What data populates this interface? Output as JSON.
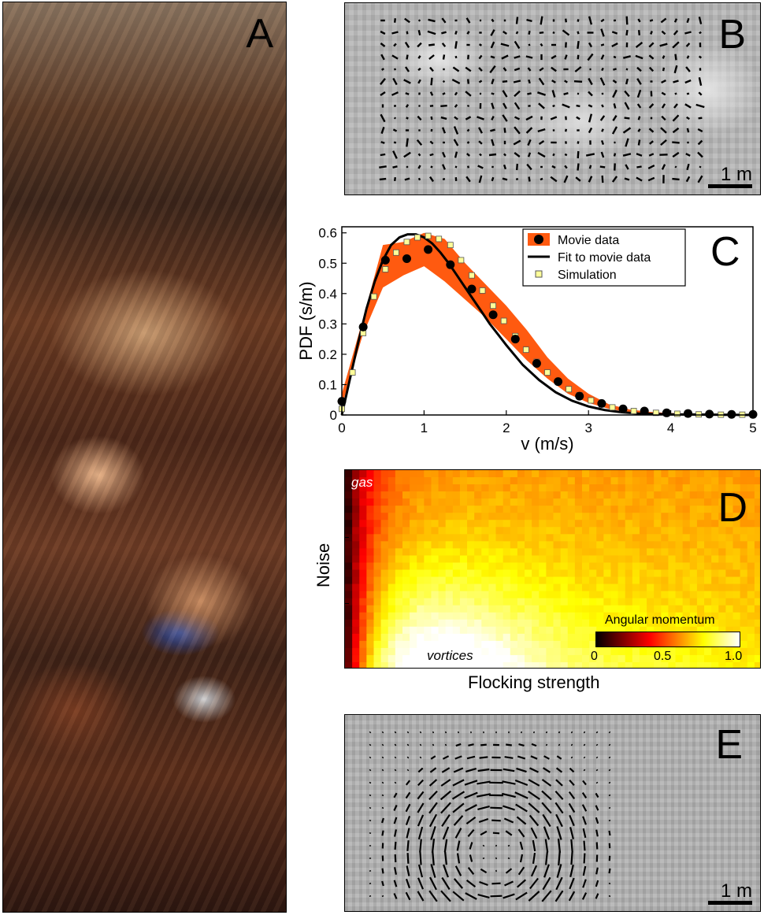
{
  "panels": {
    "a": {
      "letter": "A"
    },
    "b": {
      "letter": "B",
      "scale_label": "1 m"
    },
    "c": {
      "letter": "C"
    },
    "d": {
      "letter": "D",
      "ylabel": "Noise",
      "xlabel": "Flocking strength",
      "label_gas": "gas",
      "label_vortices": "vortices",
      "colorbar_title": "Angular momentum",
      "colorbar_ticks": [
        "0",
        "0.5",
        "1.0"
      ]
    },
    "e": {
      "letter": "E",
      "scale_label": "1 m"
    }
  },
  "colors": {
    "band": "#ff5a10",
    "movie_points": "#000000",
    "fit_line": "#000000",
    "sim_marker_fill": "#ffff99",
    "sim_marker_edge": "#555555"
  },
  "chart_data": [
    {
      "type": "line",
      "panel": "C",
      "xlabel": "v (m/s)",
      "ylabel": "PDF (s/m)",
      "xlim": [
        0,
        5
      ],
      "ylim": [
        0,
        0.62
      ],
      "xticks": [
        0,
        1,
        2,
        3,
        4,
        5
      ],
      "yticks": [
        0,
        0.1,
        0.2,
        0.3,
        0.4,
        0.5,
        0.6
      ],
      "ytick_labels": [
        "0",
        "0.1",
        "0.2",
        "0.3",
        "0.4",
        "0.5",
        "0.6"
      ],
      "legend_position": "top-right",
      "legend": [
        "Movie data",
        "Fit to movie data",
        "Simulation"
      ],
      "band": {
        "x": [
          0,
          0.25,
          0.5,
          0.75,
          1.0,
          1.25,
          1.5,
          1.75,
          2.0,
          2.25,
          2.5,
          2.75,
          3.0,
          3.25,
          3.5,
          3.75,
          4.0,
          4.5,
          5.0
        ],
        "upper": [
          0.07,
          0.31,
          0.56,
          0.57,
          0.6,
          0.58,
          0.5,
          0.43,
          0.36,
          0.28,
          0.19,
          0.12,
          0.07,
          0.035,
          0.018,
          0.01,
          0.006,
          0.003,
          0.002
        ],
        "lower": [
          0.03,
          0.26,
          0.42,
          0.46,
          0.49,
          0.44,
          0.38,
          0.32,
          0.25,
          0.18,
          0.12,
          0.07,
          0.04,
          0.02,
          0.009,
          0.005,
          0.003,
          0.001,
          0.001
        ]
      },
      "series": [
        {
          "name": "Movie data",
          "marker": "circle",
          "x": [
            0,
            0.26,
            0.53,
            0.79,
            1.05,
            1.32,
            1.58,
            1.84,
            2.11,
            2.37,
            2.63,
            2.89,
            3.16,
            3.42,
            3.68,
            3.95,
            4.21,
            4.47,
            4.74,
            5.0
          ],
          "y": [
            0.045,
            0.29,
            0.51,
            0.515,
            0.545,
            0.495,
            0.415,
            0.33,
            0.25,
            0.17,
            0.11,
            0.062,
            0.038,
            0.02,
            0.013,
            0.007,
            0.005,
            0.003,
            0.002,
            0.002
          ]
        },
        {
          "name": "Fit to movie data",
          "marker": "none",
          "x": [
            0,
            0.1,
            0.2,
            0.3,
            0.4,
            0.5,
            0.6,
            0.7,
            0.8,
            0.9,
            1.0,
            1.1,
            1.2,
            1.3,
            1.4,
            1.5,
            1.6,
            1.7,
            1.8,
            1.9,
            2.0,
            2.2,
            2.4,
            2.6,
            2.8,
            3.0,
            3.2,
            3.4,
            3.6,
            3.8,
            4.0,
            4.5,
            5.0
          ],
          "y": [
            0.0,
            0.12,
            0.24,
            0.35,
            0.44,
            0.51,
            0.56,
            0.585,
            0.595,
            0.595,
            0.585,
            0.565,
            0.535,
            0.5,
            0.46,
            0.42,
            0.38,
            0.34,
            0.3,
            0.265,
            0.23,
            0.165,
            0.115,
            0.075,
            0.047,
            0.028,
            0.016,
            0.009,
            0.005,
            0.003,
            0.002,
            0.001,
            0.0
          ]
        },
        {
          "name": "Simulation",
          "marker": "square",
          "x": [
            0.0,
            0.13,
            0.26,
            0.39,
            0.53,
            0.66,
            0.79,
            0.92,
            1.05,
            1.18,
            1.32,
            1.45,
            1.58,
            1.71,
            1.84,
            1.97,
            2.11,
            2.24,
            2.37,
            2.5,
            2.63,
            2.76,
            2.89,
            3.03,
            3.16,
            3.29,
            3.42,
            3.55,
            3.68,
            3.82,
            3.95,
            4.08,
            4.21,
            4.34,
            4.47,
            4.61,
            4.74,
            4.87,
            5.0
          ],
          "y": [
            0.02,
            0.14,
            0.27,
            0.39,
            0.48,
            0.535,
            0.57,
            0.585,
            0.59,
            0.58,
            0.56,
            0.51,
            0.46,
            0.41,
            0.36,
            0.31,
            0.26,
            0.215,
            0.175,
            0.14,
            0.11,
            0.085,
            0.065,
            0.048,
            0.035,
            0.025,
            0.018,
            0.013,
            0.009,
            0.007,
            0.005,
            0.004,
            0.003,
            0.002,
            0.002,
            0.001,
            0.001,
            0.001,
            0.001
          ]
        }
      ]
    },
    {
      "type": "heatmap",
      "panel": "D",
      "xlabel": "Flocking strength",
      "ylabel": "Noise",
      "colormap": "hot",
      "colorbar_label": "Angular momentum",
      "colorbar_range": [
        0,
        1.0
      ],
      "colorbar_ticks": [
        0,
        0.5,
        1.0
      ],
      "peak_region": "bottom-left (low noise, moderate flocking)",
      "low_region": "left edge and top-left corner",
      "annotations": [
        "gas",
        "vortices"
      ]
    }
  ]
}
